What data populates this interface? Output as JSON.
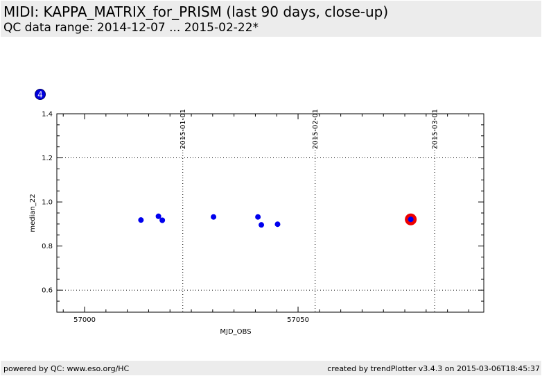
{
  "header": {
    "title": "MIDI: KAPPA_MATRIX_for_PRISM (last 90 days, close-up)",
    "subtitle": "QC data range: 2014-12-07 ... 2015-02-22*"
  },
  "badge": {
    "label": "4",
    "color": "#0000dd"
  },
  "footer": {
    "left": "powered by QC: www.eso.org/HC",
    "right": "created by trendPlotter v3.4.3 on 2015-03-06T18:45:37"
  },
  "colors": {
    "point": "#0000ee",
    "highlight": "#ee0000"
  },
  "chart_data": {
    "type": "scatter",
    "xlabel": "MJD_OBS",
    "ylabel": "median_22",
    "xlim": [
      56993.5,
      57093.5
    ],
    "ylim": [
      0.5,
      1.4
    ],
    "xticks": [
      57000,
      57050
    ],
    "xtick_labels": [
      "57000",
      "57050"
    ],
    "yticks": [
      0.6,
      0.8,
      1.0,
      1.2,
      1.4
    ],
    "ytick_labels": [
      "0.6",
      "0.8",
      "1.0",
      "1.2",
      "1.4"
    ],
    "hgrid": [
      0.6,
      1.2
    ],
    "date_markers": [
      {
        "x": 57023.0,
        "label": "2015-01-01"
      },
      {
        "x": 57054.0,
        "label": "2015-02-01"
      },
      {
        "x": 57082.0,
        "label": "2015-03-01"
      }
    ],
    "points": [
      {
        "x": 57013.2,
        "y": 0.918
      },
      {
        "x": 57017.3,
        "y": 0.935
      },
      {
        "x": 57018.2,
        "y": 0.917
      },
      {
        "x": 57030.2,
        "y": 0.932
      },
      {
        "x": 57040.6,
        "y": 0.932
      },
      {
        "x": 57041.4,
        "y": 0.896
      },
      {
        "x": 57045.2,
        "y": 0.899
      },
      {
        "x": 57076.4,
        "y": 0.921
      }
    ],
    "highlighted": [
      {
        "x": 57076.4,
        "y": 0.921
      }
    ]
  }
}
